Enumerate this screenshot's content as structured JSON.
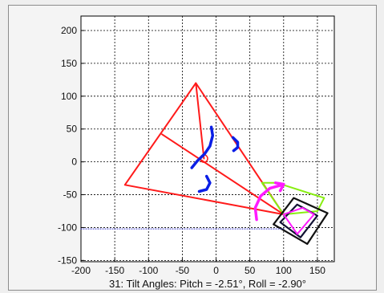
{
  "chart_data": {
    "type": "scatter",
    "title": "",
    "xlabel": "31: Tilt Angles: Pitch = -2.51°, Roll = -2.90°",
    "ylabel": "",
    "xlim": [
      -200,
      175
    ],
    "ylim": [
      -152,
      222
    ],
    "xticks": [
      -200,
      -150,
      -100,
      -50,
      0,
      50,
      100,
      150
    ],
    "yticks": [
      -150,
      -100,
      -50,
      0,
      50,
      100,
      150,
      200
    ],
    "grid": true,
    "colors": {
      "triangle": "#ff1a1a",
      "arcs": "#0a1ee6",
      "magenta": "#ff1aff",
      "lime": "#88ee11",
      "box": "#111111",
      "navy": "#111133",
      "dotted_line": "#3333cc"
    },
    "series": [
      {
        "type": "polygon",
        "color_key": "triangle",
        "points": [
          [
            -30,
            120
          ],
          [
            -135,
            -35
          ],
          [
            100,
            -80
          ]
        ]
      },
      {
        "type": "line",
        "color_key": "triangle",
        "points": [
          [
            -80,
            42
          ],
          [
            100,
            -80
          ]
        ]
      },
      {
        "type": "line",
        "color_key": "triangle",
        "points": [
          [
            -30,
            120
          ],
          [
            -18,
            5
          ]
        ]
      },
      {
        "type": "circle",
        "color_key": "triangle",
        "center": [
          -18,
          5
        ],
        "r": 5.5
      },
      {
        "type": "arc",
        "color_key": "arcs",
        "points": [
          [
            -7,
            53
          ],
          [
            -5,
            40
          ],
          [
            -9,
            24
          ],
          [
            -17,
            12
          ],
          [
            -28,
            1
          ],
          [
            -36,
            -9
          ]
        ]
      },
      {
        "type": "arc",
        "color_key": "arcs",
        "points": [
          [
            25,
            37
          ],
          [
            32,
            30
          ],
          [
            32,
            22
          ],
          [
            26,
            17
          ]
        ]
      },
      {
        "type": "arc",
        "color_key": "arcs",
        "points": [
          [
            -14,
            -22
          ],
          [
            -9,
            -32
          ],
          [
            -14,
            -42
          ],
          [
            -25,
            -45
          ]
        ]
      },
      {
        "type": "polyline",
        "color_key": "lime",
        "points": [
          [
            68,
            -32
          ],
          [
            90,
            -32
          ],
          [
            160,
            -55
          ],
          [
            150,
            -75
          ],
          [
            100,
            -80
          ],
          [
            68,
            -32
          ]
        ]
      },
      {
        "type": "polygon",
        "color_key": "box",
        "points": [
          [
            85,
            -95
          ],
          [
            115,
            -55
          ],
          [
            165,
            -78
          ],
          [
            135,
            -125
          ]
        ]
      },
      {
        "type": "polygon",
        "color_key": "navy",
        "points": [
          [
            95,
            -92
          ],
          [
            120,
            -65
          ],
          [
            150,
            -82
          ],
          [
            125,
            -115
          ]
        ]
      },
      {
        "type": "polyline",
        "color_key": "magenta",
        "points": [
          [
            100,
            -80
          ],
          [
            128,
            -70
          ],
          [
            145,
            -80
          ],
          [
            120,
            -110
          ],
          [
            100,
            -80
          ]
        ]
      },
      {
        "type": "arc",
        "color_key": "magenta",
        "points": [
          [
            60,
            -88
          ],
          [
            58,
            -70
          ],
          [
            66,
            -52
          ],
          [
            80,
            -40
          ],
          [
            98,
            -35
          ]
        ]
      },
      {
        "type": "arc",
        "color_key": "magenta",
        "points": [
          [
            88,
            -32
          ],
          [
            100,
            -34
          ],
          [
            95,
            -44
          ]
        ]
      },
      {
        "type": "line",
        "color_key": "dotted_line",
        "points": [
          [
            -200,
            -102
          ],
          [
            100,
            -102
          ]
        ]
      }
    ]
  }
}
